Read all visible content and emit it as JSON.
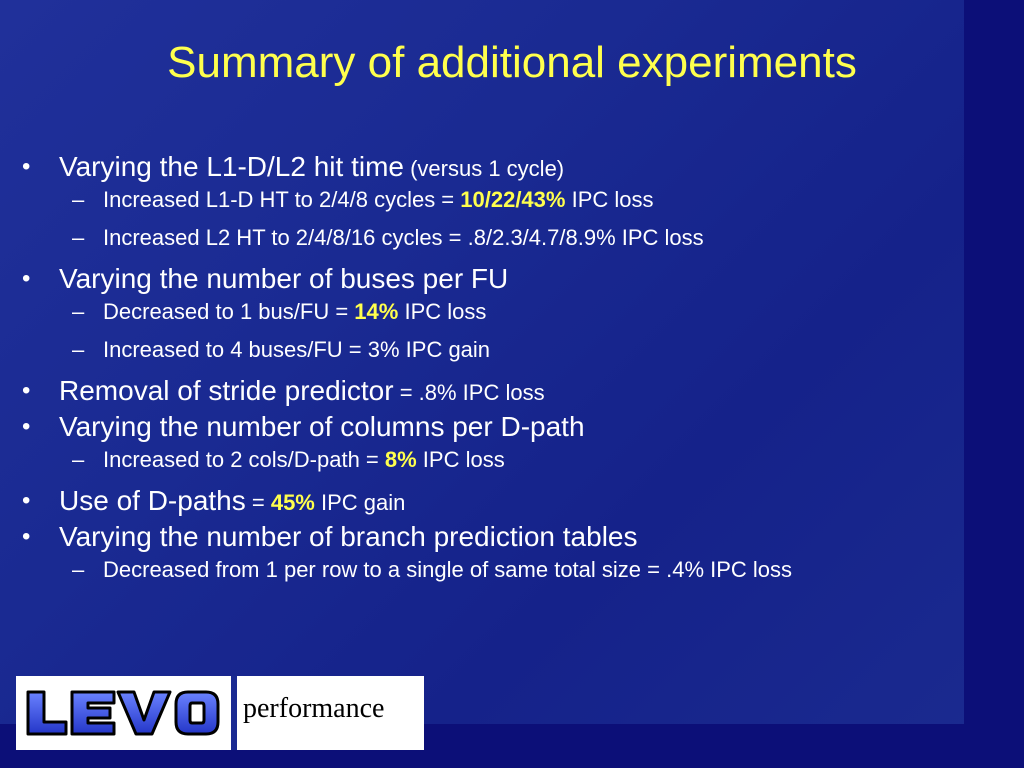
{
  "title": "Summary of additional experiments",
  "bullets": [
    {
      "text": "Varying the L1-D/L2 hit time",
      "suffix_small": " (versus 1 cycle)"
    },
    {
      "text": "Varying the number of buses per FU"
    },
    {
      "text": "Removal of stride predictor",
      "suffix_small": " = .8% IPC loss"
    },
    {
      "text": "Varying the number of columns per D-path"
    },
    {
      "text": "Use of D-paths",
      "eq": " = ",
      "highlight": "45%",
      "suffix_small": " IPC gain"
    },
    {
      "text": "Varying the number of branch prediction tables"
    }
  ],
  "subs": [
    {
      "pre": "Increased L1-D HT to 2/4/8 cycles = ",
      "highlight": "10/22/43%",
      "post": " IPC loss"
    },
    {
      "text": "Increased L2 HT to 2/4/8/16 cycles = .8/2.3/4.7/8.9% IPC loss"
    },
    {
      "pre": "Decreased to 1 bus/FU = ",
      "highlight": "14%",
      "post": " IPC loss"
    },
    {
      "text": "Increased to 4 buses/FU = 3% IPC gain"
    },
    {
      "pre": "Increased to 2 cols/D-path = ",
      "highlight": "8%",
      "post": " IPC loss"
    },
    {
      "text": "Decreased from 1 per row to a single of same total size = .4% IPC loss"
    }
  ],
  "symbols": {
    "bullet": "•",
    "dash": "–"
  },
  "footer": {
    "logo_text": "LEVO",
    "caption": "performance"
  },
  "colors": {
    "title": "#ffff4d",
    "highlight": "#ffff4d",
    "background": "#1a2a92",
    "text": "#ffffff"
  }
}
